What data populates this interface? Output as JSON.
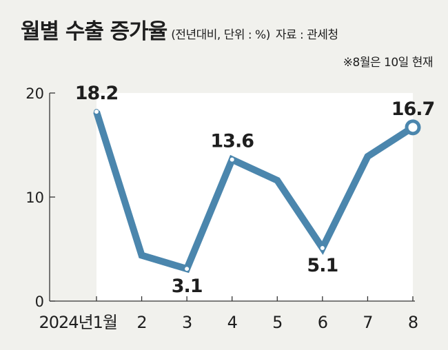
{
  "header": {
    "title": "월별 수출 증가율",
    "subtitle": "(전년대비, 단위 : %)",
    "source": "자료 : 관세청",
    "note": "※8월은 10일 현재"
  },
  "colors": {
    "background": "#f1f1ed",
    "plot_area": "#ffffff",
    "line": "#4b86ad",
    "text": "#1e1e1e"
  },
  "chart_data": {
    "type": "line",
    "categories": [
      "2024년1월",
      "2",
      "3",
      "4",
      "5",
      "6",
      "7",
      "8"
    ],
    "series": [
      {
        "values": [
          18.2,
          4.4,
          3.1,
          13.6,
          11.6,
          5.1,
          13.9,
          16.7
        ]
      }
    ],
    "data_labels": [
      "18.2",
      "",
      "3.1",
      "13.6",
      "",
      "5.1",
      "",
      "16.7"
    ],
    "y_ticks": [
      "0",
      "10",
      "20"
    ],
    "ylim": [
      0,
      20
    ],
    "grid": false,
    "legend": "none"
  }
}
